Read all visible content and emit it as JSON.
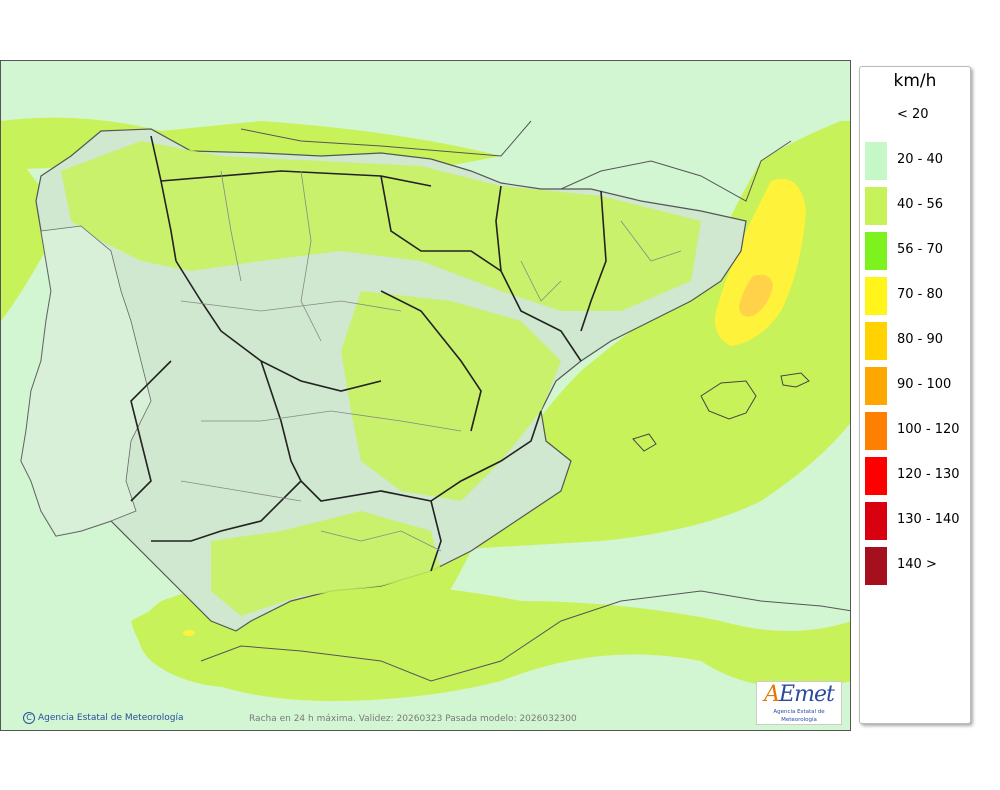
{
  "map": {
    "credit": "Agencia Estatal de Meteorología",
    "validity": "Racha en 24 h máxima. Validez: 20260323 Pasada modelo: 2026032300",
    "logo": {
      "brand_a": "A",
      "brand_rest": "Emet",
      "subtitle": "Agencia Estatal de Meteorología"
    },
    "colors": {
      "sea_low": "#d2f5d2",
      "wind_20_40": "#c6f7c6",
      "wind_40_56": "#c8f25a",
      "wind_70_80": "#fff23a",
      "wind_80_90": "#ffd200",
      "land_tint": "#cfe8cf",
      "border": "#222222",
      "province": "#888888"
    }
  },
  "legend": {
    "unit": "km/h",
    "items": [
      {
        "label": "< 20",
        "color": "#ffffff"
      },
      {
        "label": "20 - 40",
        "color": "#c6f7c6"
      },
      {
        "label": "40 - 56",
        "color": "#c8f25a"
      },
      {
        "label": "56 - 70",
        "color": "#7cf21e"
      },
      {
        "label": "70 - 80",
        "color": "#fff51a"
      },
      {
        "label": "80 - 90",
        "color": "#ffd200"
      },
      {
        "label": "90 - 100",
        "color": "#ffa600"
      },
      {
        "label": "100 - 120",
        "color": "#ff8000"
      },
      {
        "label": "120 - 130",
        "color": "#ff0000"
      },
      {
        "label": "130 - 140",
        "color": "#d9000f"
      },
      {
        "label": "140 >",
        "color": "#a50f1e"
      }
    ]
  }
}
